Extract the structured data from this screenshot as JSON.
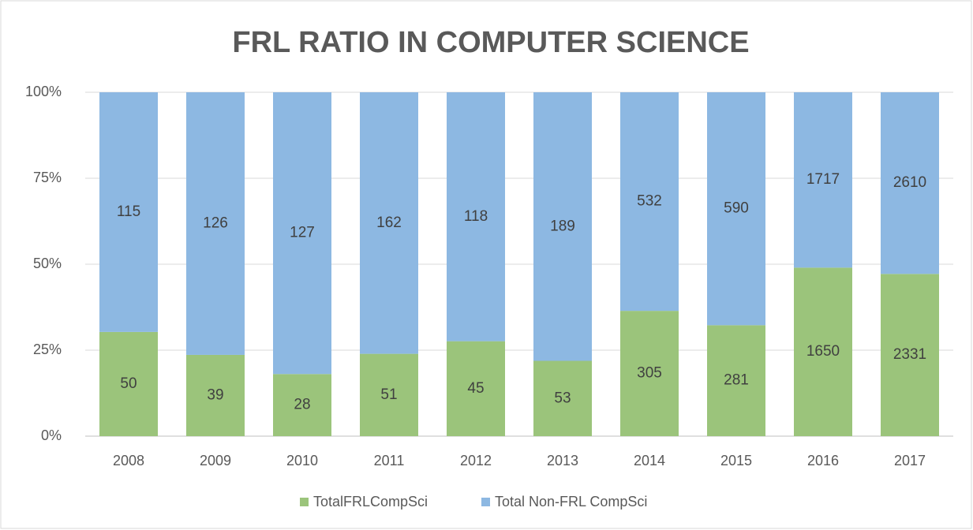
{
  "chart_data": {
    "type": "bar",
    "stacked": "percent",
    "title": "FRL RATIO IN COMPUTER SCIENCE",
    "categories": [
      "2008",
      "2009",
      "2010",
      "2011",
      "2012",
      "2013",
      "2014",
      "2015",
      "2016",
      "2017"
    ],
    "series": [
      {
        "name": "TotalFRLCompSci",
        "color": "#9bc47b",
        "values": [
          50,
          39,
          28,
          51,
          45,
          53,
          305,
          281,
          1650,
          2331
        ]
      },
      {
        "name": "Total Non-FRL CompSci",
        "color": "#8db8e2",
        "values": [
          115,
          126,
          127,
          162,
          118,
          189,
          532,
          590,
          1717,
          2610
        ]
      }
    ],
    "ylim": [
      0,
      100
    ],
    "yticks": [
      {
        "value": 0,
        "label": "0%"
      },
      {
        "value": 25,
        "label": "25%"
      },
      {
        "value": 50,
        "label": "50%"
      },
      {
        "value": 75,
        "label": "75%"
      },
      {
        "value": 100,
        "label": "100%"
      }
    ],
    "grid": true,
    "legend": "bottom"
  }
}
